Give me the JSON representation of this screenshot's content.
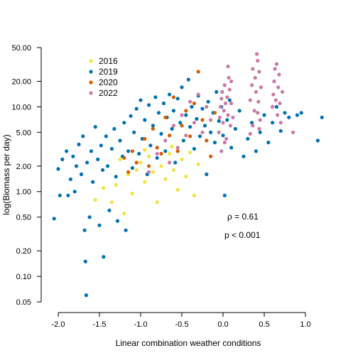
{
  "chart_data": {
    "type": "scatter",
    "xlabel": "Linear combination weather conditions",
    "ylabel": "log(Biomass per day)",
    "xlim": [
      -2.05,
      1.2
    ],
    "ylim": [
      0.05,
      50
    ],
    "y_scale": "log",
    "x_ticks": [
      -2.0,
      -1.5,
      -1.0,
      -0.5,
      0.0,
      0.5,
      1.0
    ],
    "x_tick_labels": [
      "-2.0",
      "-1.5",
      "-1.0",
      "-0.5",
      "0.0",
      "0.5",
      "1.0"
    ],
    "y_ticks": [
      0.05,
      0.1,
      0.2,
      0.5,
      1,
      2,
      5,
      10,
      20,
      50
    ],
    "y_tick_labels": [
      "0.05",
      "0.10",
      "0.20",
      "0.50",
      "1.00",
      "2.00",
      "5.00",
      "10.00",
      "20.00",
      "50.00"
    ],
    "grid": false,
    "legend_position": "top-left",
    "annotations": [
      "ρ = 0.61",
      "p < 0.001"
    ],
    "series": [
      {
        "name": "2016",
        "color": "#f0e442",
        "points": [
          [
            -1.55,
            0.8
          ],
          [
            -1.45,
            1.1
          ],
          [
            -1.35,
            0.75
          ],
          [
            -1.3,
            1.2
          ],
          [
            -1.2,
            0.55
          ],
          [
            -1.15,
            1.6
          ],
          [
            -1.1,
            0.95
          ],
          [
            -1.05,
            1.8
          ],
          [
            -1.0,
            2.2
          ],
          [
            -0.95,
            1.3
          ],
          [
            -0.9,
            2.6
          ],
          [
            -0.85,
            1.7
          ],
          [
            -0.8,
            0.75
          ],
          [
            -0.75,
            2.0
          ],
          [
            -0.7,
            1.4
          ],
          [
            -0.65,
            2.8
          ],
          [
            -0.6,
            1.8
          ],
          [
            -0.55,
            1.05
          ],
          [
            -0.5,
            2.4
          ],
          [
            -0.45,
            1.5
          ],
          [
            -0.4,
            2.9
          ],
          [
            -0.35,
            0.9
          ],
          [
            -0.3,
            2.1
          ],
          [
            -1.25,
            2.4
          ],
          [
            -0.95,
            3.1
          ],
          [
            -0.62,
            3.4
          ]
        ]
      },
      {
        "name": "2019",
        "color": "#0072b2",
        "points": [
          [
            -2.05,
            0.48
          ],
          [
            -2.0,
            1.85
          ],
          [
            -1.98,
            0.9
          ],
          [
            -1.95,
            2.4
          ],
          [
            -1.9,
            3.0
          ],
          [
            -1.88,
            0.9
          ],
          [
            -1.85,
            1.4
          ],
          [
            -1.82,
            2.6
          ],
          [
            -1.8,
            1.0
          ],
          [
            -1.78,
            2.0
          ],
          [
            -1.75,
            3.6
          ],
          [
            -1.72,
            1.6
          ],
          [
            -1.7,
            4.5
          ],
          [
            -1.68,
            0.35
          ],
          [
            -1.67,
            0.15
          ],
          [
            -1.66,
            0.06
          ],
          [
            -1.65,
            2.2
          ],
          [
            -1.62,
            0.5
          ],
          [
            -1.6,
            3.0
          ],
          [
            -1.58,
            1.3
          ],
          [
            -1.55,
            5.8
          ],
          [
            -1.52,
            2.4
          ],
          [
            -1.5,
            0.4
          ],
          [
            -1.48,
            3.5
          ],
          [
            -1.46,
            1.8
          ],
          [
            -1.45,
            0.17
          ],
          [
            -1.42,
            4.5
          ],
          [
            -1.4,
            2.0
          ],
          [
            -1.38,
            0.6
          ],
          [
            -1.35,
            3.2
          ],
          [
            -1.32,
            5.5
          ],
          [
            -1.3,
            1.5
          ],
          [
            -1.28,
            0.45
          ],
          [
            -1.25,
            4.0
          ],
          [
            -1.22,
            2.6
          ],
          [
            -1.2,
            6.5
          ],
          [
            -1.18,
            0.35
          ],
          [
            -1.15,
            3.0
          ],
          [
            -1.12,
            7.8
          ],
          [
            -1.1,
            1.9
          ],
          [
            -1.08,
            5.0
          ],
          [
            -1.05,
            9.5
          ],
          [
            -1.02,
            2.8
          ],
          [
            -1.0,
            12.0
          ],
          [
            -0.98,
            4.2
          ],
          [
            -0.95,
            7.0
          ],
          [
            -0.92,
            1.6
          ],
          [
            -0.9,
            10.5
          ],
          [
            -0.88,
            3.5
          ],
          [
            -0.85,
            6.0
          ],
          [
            -0.82,
            13.0
          ],
          [
            -0.8,
            2.5
          ],
          [
            -0.78,
            8.5
          ],
          [
            -0.75,
            4.8
          ],
          [
            -0.72,
            11.0
          ],
          [
            -0.7,
            3.0
          ],
          [
            -0.68,
            7.5
          ],
          [
            -0.65,
            14.0
          ],
          [
            -0.62,
            5.5
          ],
          [
            -0.6,
            9.0
          ],
          [
            -0.58,
            2.2
          ],
          [
            -0.55,
            12.5
          ],
          [
            -0.52,
            6.5
          ],
          [
            -0.5,
            17.0
          ],
          [
            -0.48,
            4.0
          ],
          [
            -0.45,
            8.0
          ],
          [
            -0.42,
            21.0
          ],
          [
            -0.4,
            5.8
          ],
          [
            -0.38,
            10.0
          ],
          [
            -0.35,
            3.2
          ],
          [
            -0.32,
            7.2
          ],
          [
            -0.3,
            13.5
          ],
          [
            -0.28,
            4.5
          ],
          [
            -0.25,
            9.5
          ],
          [
            -0.22,
            6.0
          ],
          [
            -0.2,
            1.6
          ],
          [
            -0.18,
            11.5
          ],
          [
            -0.15,
            5.0
          ],
          [
            -0.12,
            8.5
          ],
          [
            -0.1,
            3.8
          ],
          [
            -0.08,
            15.0
          ],
          [
            -0.05,
            6.8
          ],
          [
            -0.02,
            10.0
          ],
          [
            0.0,
            4.6
          ],
          [
            0.02,
            0.9
          ],
          [
            0.05,
            7.0
          ],
          [
            0.08,
            12.0
          ],
          [
            0.1,
            3.3
          ],
          [
            0.15,
            5.5
          ],
          [
            0.2,
            9.0
          ],
          [
            0.25,
            2.6
          ],
          [
            0.3,
            4.2
          ],
          [
            0.35,
            6.5
          ],
          [
            0.4,
            3.0
          ],
          [
            0.45,
            5.0
          ],
          [
            0.5,
            8.0
          ],
          [
            0.55,
            3.8
          ],
          [
            0.6,
            6.5
          ],
          [
            0.65,
            10.0
          ],
          [
            0.7,
            5.2
          ],
          [
            0.75,
            8.5
          ],
          [
            0.8,
            7.5
          ],
          [
            0.9,
            8.0
          ],
          [
            0.95,
            8.5
          ],
          [
            1.15,
            4.0
          ],
          [
            1.2,
            7.5
          ]
        ]
      },
      {
        "name": "2020",
        "color": "#d55e00",
        "points": [
          [
            -1.2,
            2.5
          ],
          [
            -1.15,
            1.7
          ],
          [
            -1.1,
            3.0
          ],
          [
            -1.05,
            2.2
          ],
          [
            -0.95,
            4.2
          ],
          [
            -0.9,
            2.0
          ],
          [
            -0.85,
            5.5
          ],
          [
            -0.8,
            3.3
          ],
          [
            -0.75,
            2.8
          ],
          [
            -0.7,
            7.5
          ],
          [
            -0.65,
            4.6
          ],
          [
            -0.6,
            13.0
          ],
          [
            -0.55,
            3.0
          ],
          [
            -0.5,
            6.0
          ],
          [
            -0.45,
            9.0
          ],
          [
            -0.4,
            4.5
          ],
          [
            -0.35,
            11.0
          ],
          [
            -0.3,
            26.0
          ],
          [
            -0.25,
            7.0
          ],
          [
            -0.2,
            4.0
          ],
          [
            -0.15,
            2.6
          ],
          [
            -0.1,
            8.5
          ]
        ]
      },
      {
        "name": "2022",
        "color": "#cc79a7",
        "points": [
          [
            -0.9,
            1.7
          ],
          [
            -0.8,
            2.8
          ],
          [
            -0.7,
            4.0
          ],
          [
            -0.65,
            2.2
          ],
          [
            -0.6,
            6.0
          ],
          [
            -0.55,
            3.3
          ],
          [
            -0.5,
            8.0
          ],
          [
            -0.45,
            4.6
          ],
          [
            -0.4,
            11.5
          ],
          [
            -0.35,
            6.5
          ],
          [
            -0.3,
            14.0
          ],
          [
            -0.25,
            5.0
          ],
          [
            -0.2,
            10.0
          ],
          [
            -0.15,
            7.0
          ],
          [
            -0.05,
            5.0
          ],
          [
            -0.04,
            7.5
          ],
          [
            -0.03,
            10.0
          ],
          [
            -0.02,
            12.5
          ],
          [
            -0.01,
            15.0
          ],
          [
            0.0,
            6.5
          ],
          [
            0.01,
            9.0
          ],
          [
            0.02,
            18.0
          ],
          [
            0.03,
            11.0
          ],
          [
            0.04,
            4.2
          ],
          [
            0.05,
            13.0
          ],
          [
            0.06,
            8.0
          ],
          [
            0.07,
            22.0
          ],
          [
            0.08,
            16.0
          ],
          [
            0.09,
            6.0
          ],
          [
            0.1,
            11.0
          ],
          [
            0.02,
            3.8
          ],
          [
            -0.02,
            3.0
          ],
          [
            0.06,
            30.0
          ],
          [
            0.1,
            20.0
          ],
          [
            0.12,
            7.5
          ],
          [
            0.33,
            12.0
          ],
          [
            0.35,
            18.0
          ],
          [
            0.36,
            28.0
          ],
          [
            0.38,
            9.0
          ],
          [
            0.39,
            22.0
          ],
          [
            0.4,
            15.0
          ],
          [
            0.41,
            42.0
          ],
          [
            0.42,
            35.0
          ],
          [
            0.43,
            11.5
          ],
          [
            0.44,
            26.0
          ],
          [
            0.45,
            7.0
          ],
          [
            0.46,
            17.0
          ],
          [
            0.36,
            6.0
          ],
          [
            0.33,
            4.8
          ],
          [
            0.44,
            5.5
          ],
          [
            0.42,
            8.5
          ],
          [
            0.6,
            10.0
          ],
          [
            0.61,
            14.0
          ],
          [
            0.62,
            20.0
          ],
          [
            0.63,
            28.0
          ],
          [
            0.64,
            12.0
          ],
          [
            0.65,
            32.0
          ],
          [
            0.66,
            8.0
          ],
          [
            0.67,
            17.0
          ],
          [
            0.68,
            24.0
          ],
          [
            0.69,
            11.0
          ],
          [
            0.7,
            6.5
          ],
          [
            0.72,
            15.0
          ],
          [
            0.85,
            5.0
          ]
        ]
      }
    ]
  }
}
